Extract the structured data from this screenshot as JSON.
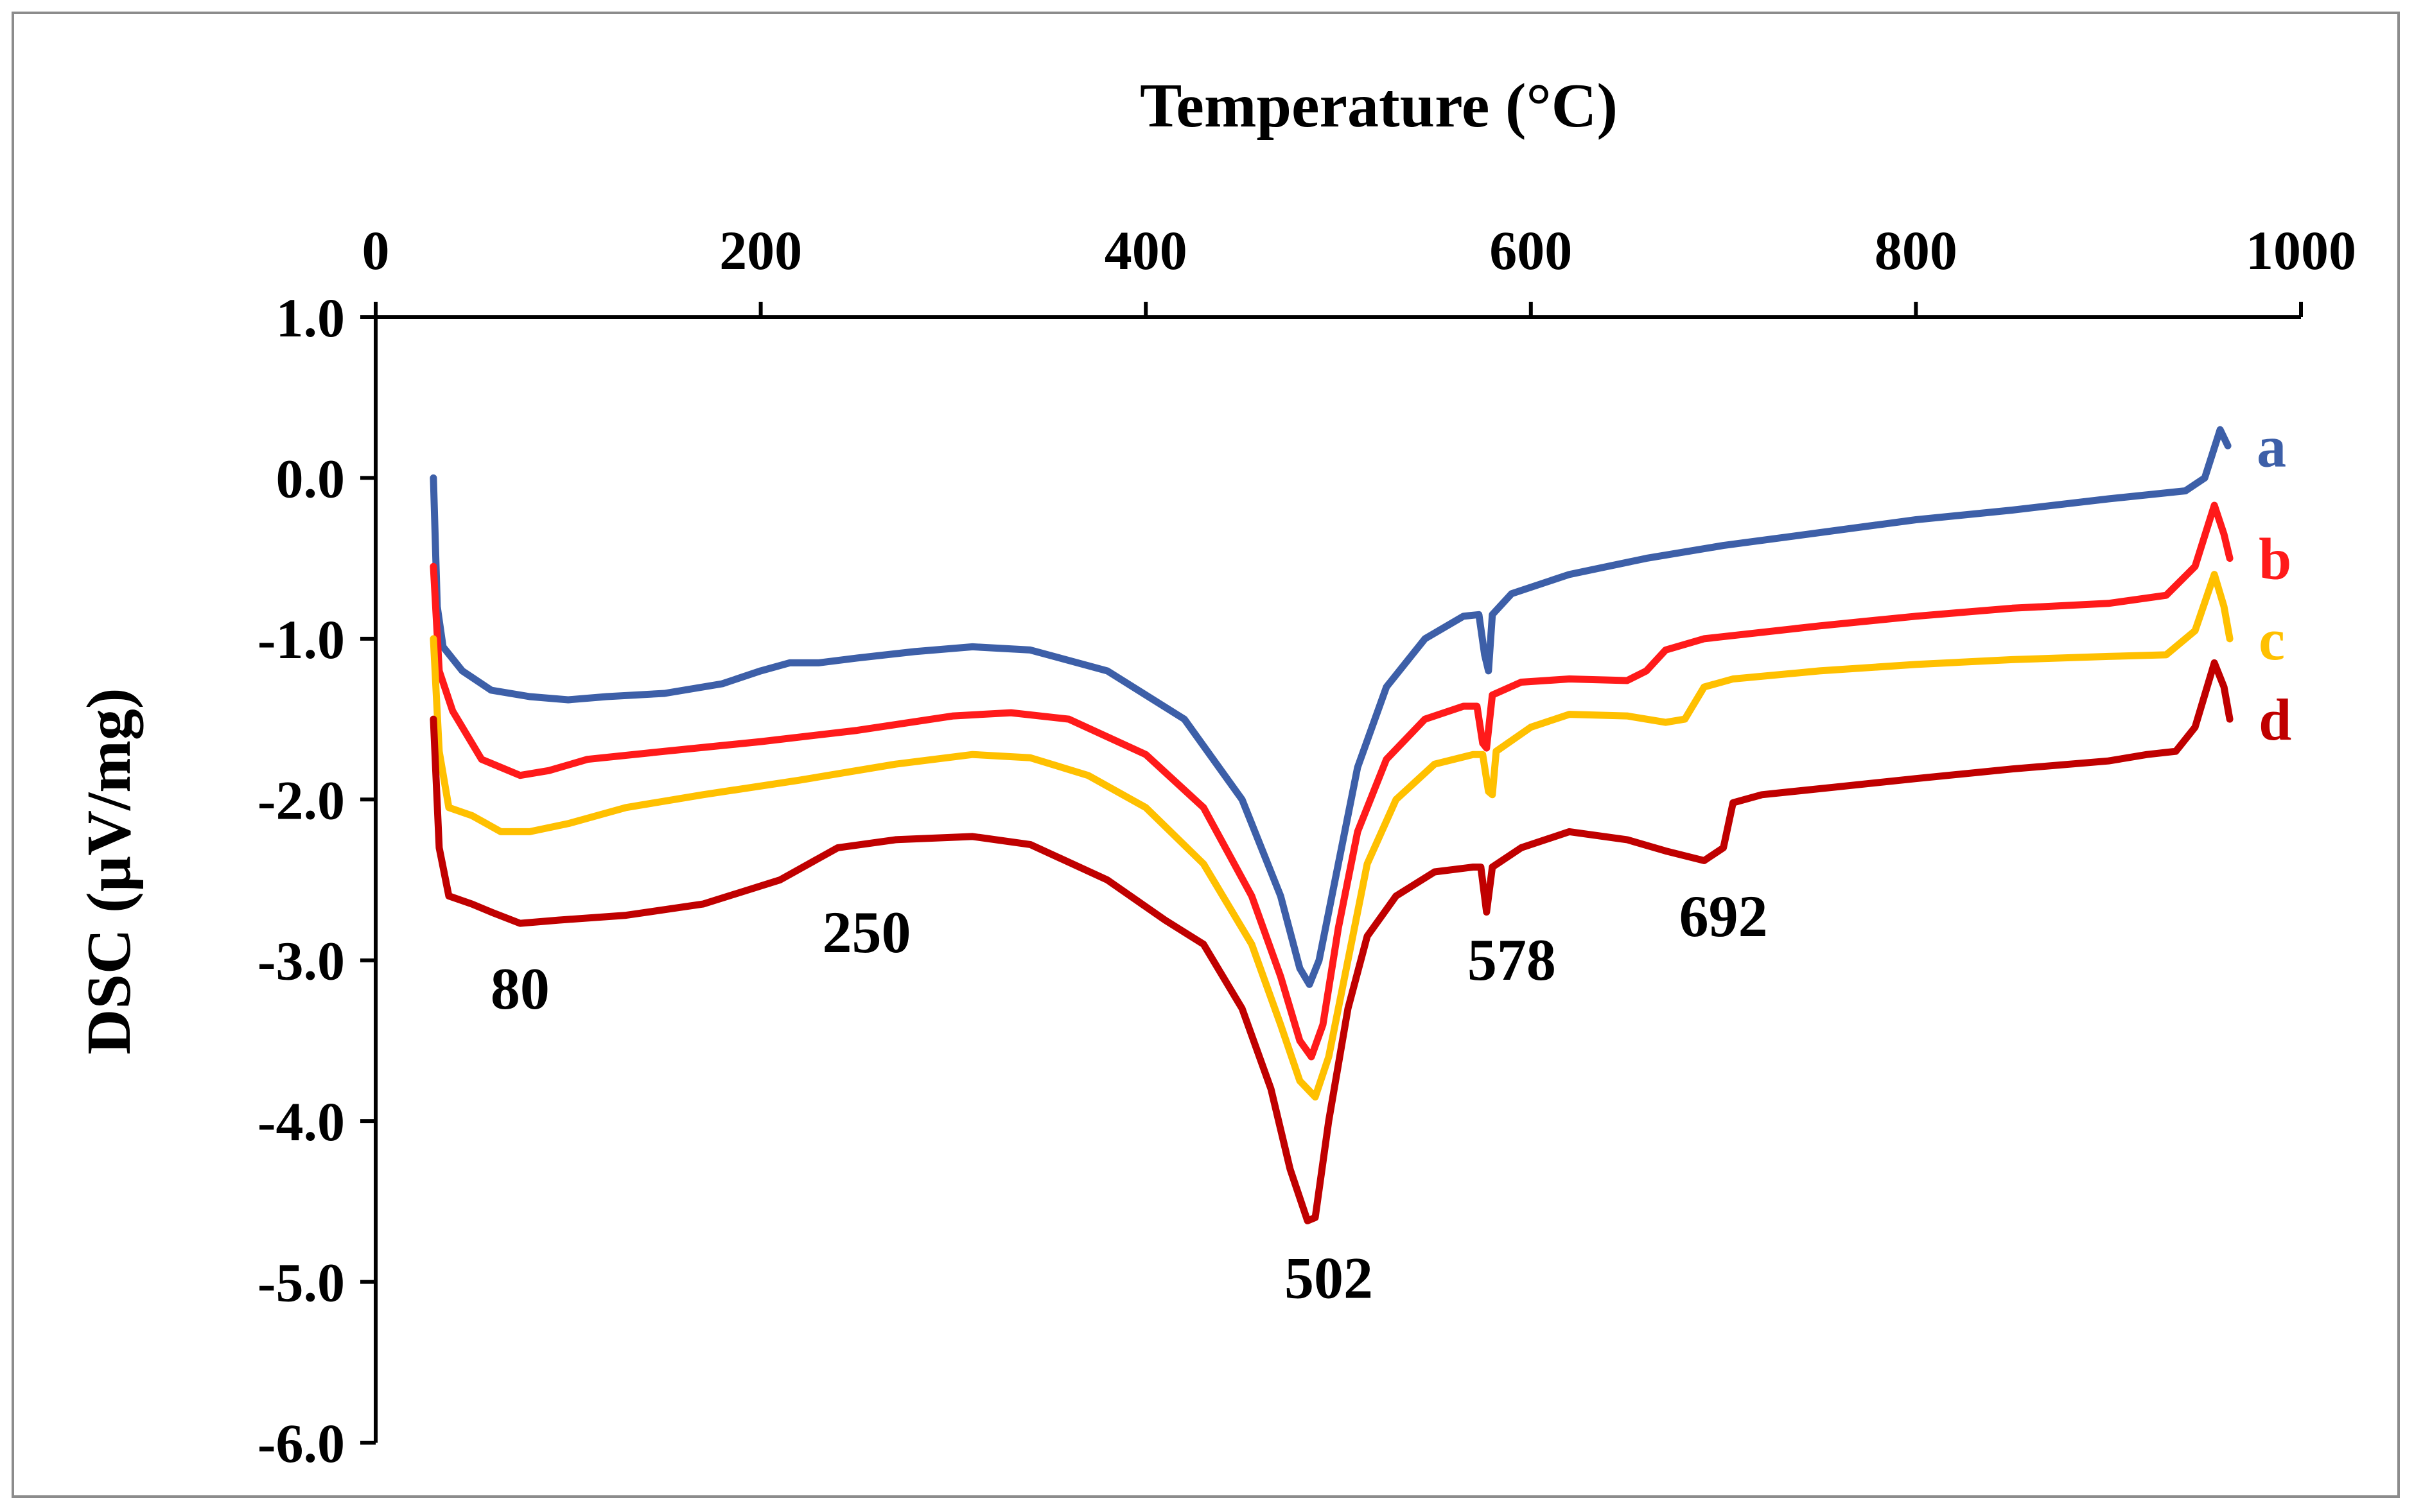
{
  "chart_data": {
    "type": "line",
    "xlabel": "Temperature  (°C)",
    "ylabel": "DSC (µV/mg)",
    "xlim": [
      0,
      1000
    ],
    "ylim": [
      -6.0,
      1.0
    ],
    "x_axis_position": "top",
    "grid": false,
    "x_ticks": [
      "0",
      "200",
      "400",
      "600",
      "800",
      "1000"
    ],
    "y_ticks": [
      "1.0",
      "0.0",
      "-1.0",
      "-2.0",
      "-3.0",
      "-4.0",
      "-5.0",
      "-6.0"
    ],
    "series": [
      {
        "name": "a",
        "color": "#3d5fa8",
        "points": [
          [
            30,
            0.0
          ],
          [
            32,
            -0.8
          ],
          [
            35,
            -1.05
          ],
          [
            45,
            -1.2
          ],
          [
            60,
            -1.32
          ],
          [
            80,
            -1.36
          ],
          [
            100,
            -1.38
          ],
          [
            120,
            -1.36
          ],
          [
            150,
            -1.34
          ],
          [
            180,
            -1.28
          ],
          [
            200,
            -1.2
          ],
          [
            215,
            -1.15
          ],
          [
            230,
            -1.15
          ],
          [
            250,
            -1.12
          ],
          [
            280,
            -1.08
          ],
          [
            310,
            -1.05
          ],
          [
            340,
            -1.07
          ],
          [
            380,
            -1.2
          ],
          [
            420,
            -1.5
          ],
          [
            450,
            -2.0
          ],
          [
            470,
            -2.6
          ],
          [
            480,
            -3.05
          ],
          [
            485,
            -3.15
          ],
          [
            490,
            -3.0
          ],
          [
            500,
            -2.4
          ],
          [
            510,
            -1.8
          ],
          [
            525,
            -1.3
          ],
          [
            545,
            -1.0
          ],
          [
            565,
            -0.86
          ],
          [
            573,
            -0.85
          ],
          [
            576,
            -1.1
          ],
          [
            578,
            -1.2
          ],
          [
            580,
            -0.85
          ],
          [
            590,
            -0.72
          ],
          [
            620,
            -0.6
          ],
          [
            660,
            -0.5
          ],
          [
            700,
            -0.42
          ],
          [
            750,
            -0.34
          ],
          [
            800,
            -0.26
          ],
          [
            850,
            -0.2
          ],
          [
            900,
            -0.13
          ],
          [
            940,
            -0.08
          ],
          [
            950,
            0.0
          ],
          [
            958,
            0.3
          ],
          [
            962,
            0.2
          ]
        ]
      },
      {
        "name": "b",
        "color": "#ff1a1a",
        "points": [
          [
            30,
            -0.55
          ],
          [
            33,
            -1.2
          ],
          [
            40,
            -1.45
          ],
          [
            55,
            -1.75
          ],
          [
            75,
            -1.85
          ],
          [
            90,
            -1.82
          ],
          [
            110,
            -1.75
          ],
          [
            150,
            -1.7
          ],
          [
            200,
            -1.64
          ],
          [
            250,
            -1.57
          ],
          [
            300,
            -1.48
          ],
          [
            330,
            -1.46
          ],
          [
            360,
            -1.5
          ],
          [
            400,
            -1.72
          ],
          [
            430,
            -2.05
          ],
          [
            455,
            -2.6
          ],
          [
            470,
            -3.1
          ],
          [
            480,
            -3.5
          ],
          [
            486,
            -3.6
          ],
          [
            492,
            -3.4
          ],
          [
            500,
            -2.8
          ],
          [
            510,
            -2.2
          ],
          [
            525,
            -1.75
          ],
          [
            545,
            -1.5
          ],
          [
            565,
            -1.42
          ],
          [
            572,
            -1.42
          ],
          [
            575,
            -1.65
          ],
          [
            577,
            -1.68
          ],
          [
            580,
            -1.35
          ],
          [
            595,
            -1.27
          ],
          [
            620,
            -1.25
          ],
          [
            650,
            -1.26
          ],
          [
            660,
            -1.2
          ],
          [
            670,
            -1.07
          ],
          [
            690,
            -1.0
          ],
          [
            750,
            -0.92
          ],
          [
            800,
            -0.86
          ],
          [
            850,
            -0.81
          ],
          [
            900,
            -0.78
          ],
          [
            930,
            -0.73
          ],
          [
            945,
            -0.55
          ],
          [
            955,
            -0.17
          ],
          [
            960,
            -0.35
          ],
          [
            963,
            -0.5
          ]
        ]
      },
      {
        "name": "c",
        "color": "#ffc000",
        "points": [
          [
            30,
            -1.0
          ],
          [
            33,
            -1.7
          ],
          [
            38,
            -2.05
          ],
          [
            50,
            -2.1
          ],
          [
            65,
            -2.2
          ],
          [
            80,
            -2.2
          ],
          [
            100,
            -2.15
          ],
          [
            130,
            -2.05
          ],
          [
            170,
            -1.97
          ],
          [
            220,
            -1.88
          ],
          [
            270,
            -1.78
          ],
          [
            310,
            -1.72
          ],
          [
            340,
            -1.74
          ],
          [
            370,
            -1.85
          ],
          [
            400,
            -2.05
          ],
          [
            430,
            -2.4
          ],
          [
            455,
            -2.9
          ],
          [
            470,
            -3.4
          ],
          [
            480,
            -3.75
          ],
          [
            488,
            -3.85
          ],
          [
            495,
            -3.6
          ],
          [
            505,
            -3.0
          ],
          [
            515,
            -2.4
          ],
          [
            530,
            -2.0
          ],
          [
            550,
            -1.78
          ],
          [
            570,
            -1.72
          ],
          [
            575,
            -1.72
          ],
          [
            578,
            -1.95
          ],
          [
            580,
            -1.97
          ],
          [
            582,
            -1.7
          ],
          [
            600,
            -1.55
          ],
          [
            620,
            -1.47
          ],
          [
            650,
            -1.48
          ],
          [
            670,
            -1.52
          ],
          [
            680,
            -1.5
          ],
          [
            690,
            -1.3
          ],
          [
            705,
            -1.25
          ],
          [
            750,
            -1.2
          ],
          [
            800,
            -1.16
          ],
          [
            850,
            -1.13
          ],
          [
            900,
            -1.11
          ],
          [
            930,
            -1.1
          ],
          [
            945,
            -0.95
          ],
          [
            955,
            -0.6
          ],
          [
            960,
            -0.8
          ],
          [
            963,
            -1.0
          ]
        ]
      },
      {
        "name": "d",
        "color": "#c00000",
        "points": [
          [
            30,
            -1.5
          ],
          [
            33,
            -2.3
          ],
          [
            38,
            -2.6
          ],
          [
            50,
            -2.65
          ],
          [
            60,
            -2.7
          ],
          [
            75,
            -2.77
          ],
          [
            95,
            -2.75
          ],
          [
            130,
            -2.72
          ],
          [
            170,
            -2.65
          ],
          [
            210,
            -2.5
          ],
          [
            240,
            -2.3
          ],
          [
            270,
            -2.25
          ],
          [
            310,
            -2.23
          ],
          [
            340,
            -2.28
          ],
          [
            380,
            -2.5
          ],
          [
            410,
            -2.75
          ],
          [
            430,
            -2.9
          ],
          [
            450,
            -3.3
          ],
          [
            465,
            -3.8
          ],
          [
            475,
            -4.3
          ],
          [
            484,
            -4.62
          ],
          [
            488,
            -4.6
          ],
          [
            495,
            -4.0
          ],
          [
            505,
            -3.3
          ],
          [
            515,
            -2.85
          ],
          [
            530,
            -2.6
          ],
          [
            550,
            -2.45
          ],
          [
            570,
            -2.42
          ],
          [
            574,
            -2.42
          ],
          [
            577,
            -2.7
          ],
          [
            580,
            -2.42
          ],
          [
            595,
            -2.3
          ],
          [
            620,
            -2.2
          ],
          [
            650,
            -2.25
          ],
          [
            670,
            -2.32
          ],
          [
            690,
            -2.38
          ],
          [
            700,
            -2.3
          ],
          [
            705,
            -2.02
          ],
          [
            720,
            -1.97
          ],
          [
            760,
            -1.92
          ],
          [
            800,
            -1.87
          ],
          [
            850,
            -1.81
          ],
          [
            900,
            -1.76
          ],
          [
            920,
            -1.72
          ],
          [
            935,
            -1.7
          ],
          [
            945,
            -1.55
          ],
          [
            955,
            -1.15
          ],
          [
            960,
            -1.3
          ],
          [
            963,
            -1.5
          ]
        ]
      }
    ],
    "annotations": [
      {
        "text": "80",
        "x": 75,
        "y": -3.3
      },
      {
        "text": "250",
        "x": 255,
        "y": -2.95
      },
      {
        "text": "502",
        "x": 495,
        "y": -5.1
      },
      {
        "text": "578",
        "x": 590,
        "y": -3.12
      },
      {
        "text": "692",
        "x": 700,
        "y": -2.85
      }
    ]
  }
}
